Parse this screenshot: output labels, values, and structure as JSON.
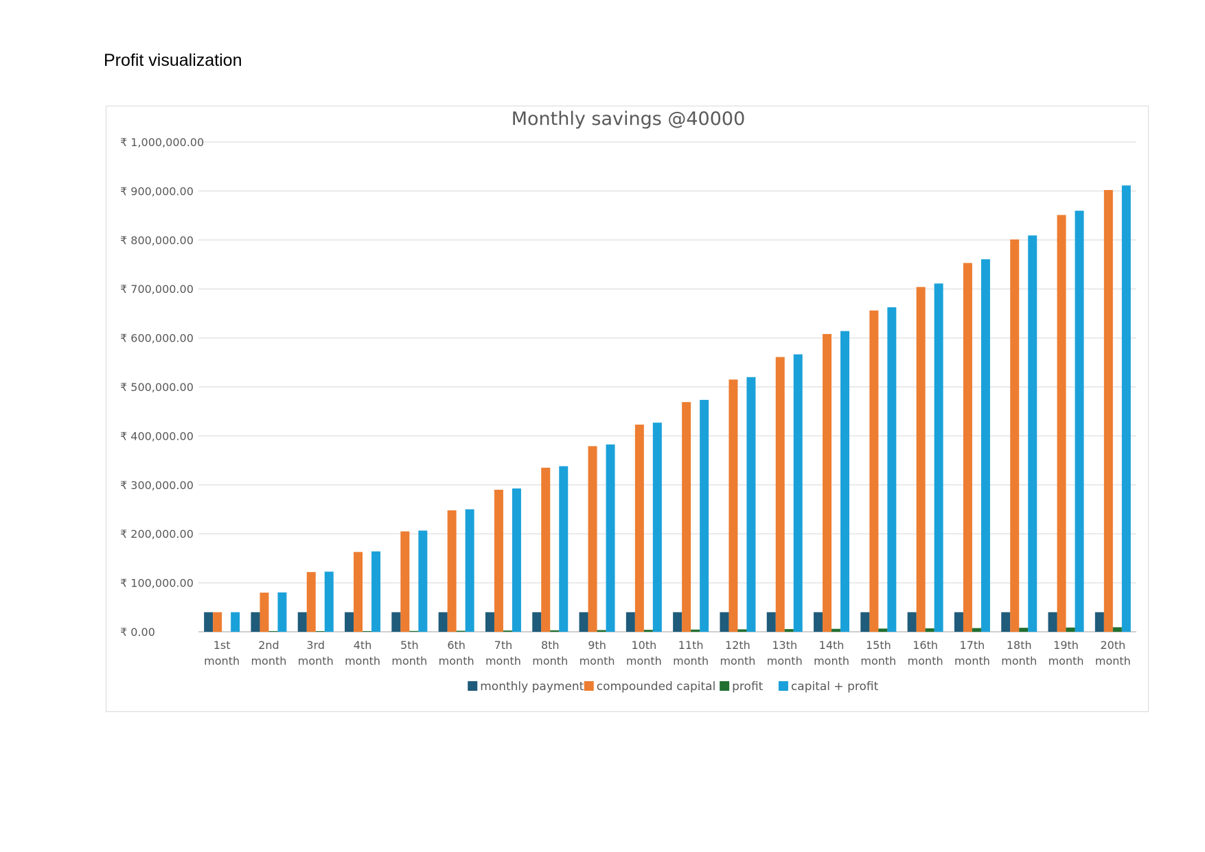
{
  "page": {
    "heading": "Profit visualization"
  },
  "chart_data": {
    "type": "bar",
    "title": "Monthly savings @40000",
    "xlabel": "",
    "ylabel": "",
    "ylim": [
      0,
      1000000
    ],
    "y_ticks": [
      "₹ 0.00",
      "₹ 100,000.00",
      "₹ 200,000.00",
      "₹ 300,000.00",
      "₹ 400,000.00",
      "₹ 500,000.00",
      "₹ 600,000.00",
      "₹ 700,000.00",
      "₹ 800,000.00",
      "₹ 900,000.00",
      "₹ 1,000,000.00"
    ],
    "grid": true,
    "legend_position": "bottom",
    "categories": [
      [
        "1st",
        "month"
      ],
      [
        "2nd",
        "month"
      ],
      [
        "3rd",
        "month"
      ],
      [
        "4th",
        "month"
      ],
      [
        "5th",
        "month"
      ],
      [
        "6th",
        "month"
      ],
      [
        "7th",
        "month"
      ],
      [
        "8th",
        "month"
      ],
      [
        "9th",
        "month"
      ],
      [
        "10th",
        "month"
      ],
      [
        "11th",
        "month"
      ],
      [
        "12th",
        "month"
      ],
      [
        "13th",
        "month"
      ],
      [
        "14th",
        "month"
      ],
      [
        "15th",
        "month"
      ],
      [
        "16th",
        "month"
      ],
      [
        "17th",
        "month"
      ],
      [
        "18th",
        "month"
      ],
      [
        "19th",
        "month"
      ],
      [
        "20th",
        "month"
      ]
    ],
    "series": [
      {
        "name": "monthly payment",
        "color": "#1f5b7a",
        "values": [
          40000,
          40000,
          40000,
          40000,
          40000,
          40000,
          40000,
          40000,
          40000,
          40000,
          40000,
          40000,
          40000,
          40000,
          40000,
          40000,
          40000,
          40000,
          40000,
          40000
        ]
      },
      {
        "name": "compounded capital",
        "color": "#ed7d31",
        "values": [
          40000,
          80000,
          122000,
          163000,
          205000,
          248000,
          290000,
          335000,
          379000,
          423000,
          469000,
          515000,
          561000,
          608000,
          656000,
          704000,
          753000,
          801000,
          851000,
          902000
        ]
      },
      {
        "name": "profit",
        "color": "#217031",
        "values": [
          0,
          400,
          800,
          1200,
          1700,
          2100,
          2600,
          3100,
          3500,
          4000,
          4500,
          5000,
          5500,
          6000,
          6600,
          7100,
          7600,
          8200,
          8700,
          9300
        ]
      },
      {
        "name": "capital + profit",
        "color": "#1ba1d9",
        "values": [
          40000,
          80400,
          122800,
          164200,
          206700,
          250100,
          292600,
          338100,
          382500,
          427000,
          473500,
          520000,
          566500,
          614000,
          662600,
          711100,
          760600,
          809200,
          859700,
          911300
        ]
      }
    ]
  }
}
